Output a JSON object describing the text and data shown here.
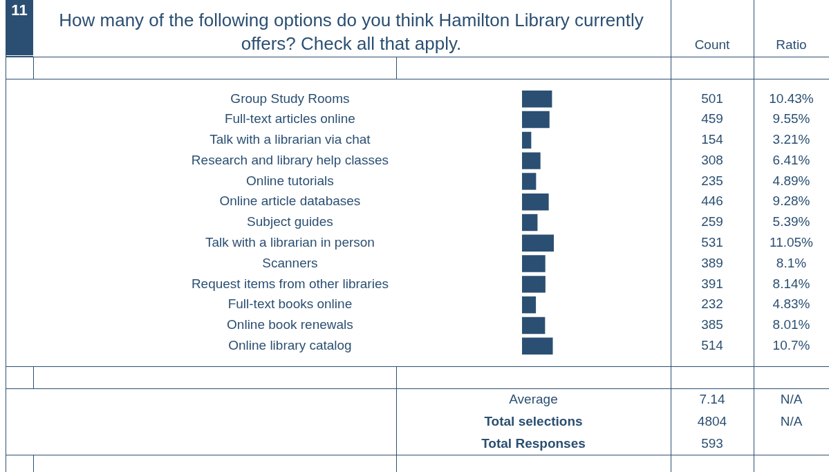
{
  "chart_data": {
    "type": "bar",
    "orientation": "horizontal",
    "title": "How many of the following options do you think Hamilton Library currently offers? Check all that apply.",
    "categories": [
      "Group Study Rooms",
      "Full-text articles online",
      "Talk with a librarian via chat",
      "Research and library help classes",
      "Online tutorials",
      "Online article databases",
      "Subject guides",
      "Talk with a librarian in person",
      "Scanners",
      "Request items from other libraries",
      "Full-text books online",
      "Online book renewals",
      "Online library catalog"
    ],
    "values": [
      501,
      459,
      154,
      308,
      235,
      446,
      259,
      531,
      389,
      391,
      232,
      385,
      514
    ],
    "color": "#2b4f72",
    "data_labels": true,
    "annotations": [
      "11",
      "Count",
      "Ratio",
      "10.43%",
      "9.55%",
      "3.21%",
      "6.41%",
      "4.89%",
      "9.28%",
      "5.39%",
      "11.05%",
      "8.1%",
      "8.14%",
      "4.83%",
      "8.01%",
      "10.7%",
      "Average",
      "7.14",
      "N/A",
      "Total selections",
      "4804",
      "N/A",
      "Total Responses",
      "593"
    ]
  }
}
